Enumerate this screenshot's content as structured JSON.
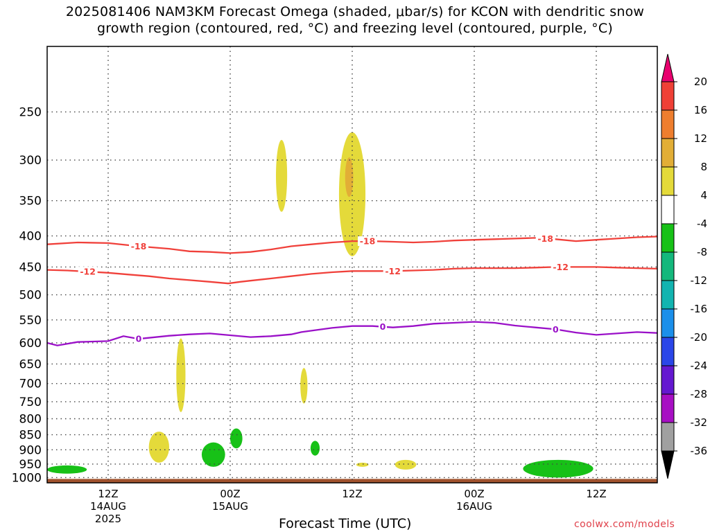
{
  "title": {
    "line1": "2025081406 NAM3KM Forecast Omega (shaded, μbar/s) for KCON with dendritic snow",
    "line2": "growth region (contoured, red, °C) and freezing level (contoured, purple, °C)"
  },
  "credit": "coolwx.com/models",
  "chart_data": {
    "type": "time-height cross section",
    "title": "2025081406 NAM3KM Forecast Omega (shaded, μbar/s) for KCON with dendritic snow growth region (contoured, red, °C) and freezing level (contoured, purple, °C)",
    "xlabel": "Forecast Time (UTC)",
    "ylabel": "",
    "x_unit": "hours since 2025-08-14 06Z",
    "xlim": [
      0,
      60
    ],
    "y_unit": "hPa",
    "yscale": "log",
    "ylim": [
      1020,
      195
    ],
    "grid": true,
    "x_ticks": [
      {
        "hour": 6,
        "lines": [
          "12Z",
          "14AUG",
          "2025"
        ]
      },
      {
        "hour": 18,
        "lines": [
          "00Z",
          "15AUG"
        ]
      },
      {
        "hour": 30,
        "lines": [
          "12Z",
          ""
        ]
      },
      {
        "hour": 42,
        "lines": [
          "00Z",
          "16AUG"
        ]
      },
      {
        "hour": 54,
        "lines": [
          "12Z",
          ""
        ]
      }
    ],
    "y_ticks": [
      250,
      300,
      350,
      400,
      450,
      500,
      550,
      600,
      650,
      700,
      750,
      800,
      850,
      900,
      950,
      1000
    ],
    "colorbar": {
      "levels": [
        20,
        16,
        12,
        8,
        4,
        -4,
        -8,
        -12,
        -16,
        -20,
        -24,
        -28,
        -32,
        -36
      ],
      "colors": [
        "#e8006e",
        "#ef4036",
        "#ee7e2e",
        "#e2ae36",
        "#e4da3a",
        "#ffffff",
        "#17c117",
        "#14b87c",
        "#12b4b0",
        "#1b8fea",
        "#2a46e8",
        "#6418d0",
        "#a70fc3",
        "#a0a0a0",
        "#000000"
      ]
    },
    "contours": [
      {
        "label": "-18",
        "color": "#f0403a",
        "label_hours": [
          9,
          31.5,
          49
        ],
        "points": [
          [
            0,
            413
          ],
          [
            3,
            410
          ],
          [
            6,
            411
          ],
          [
            9,
            416
          ],
          [
            12,
            420
          ],
          [
            14,
            424
          ],
          [
            16,
            425
          ],
          [
            18,
            427
          ],
          [
            20,
            425
          ],
          [
            22,
            421
          ],
          [
            24,
            416
          ],
          [
            26,
            413
          ],
          [
            28,
            410
          ],
          [
            30,
            408
          ],
          [
            32,
            408
          ],
          [
            34,
            409
          ],
          [
            36,
            410
          ],
          [
            38,
            409
          ],
          [
            40,
            407
          ],
          [
            42,
            406
          ],
          [
            44,
            405
          ],
          [
            46,
            404
          ],
          [
            48,
            403
          ],
          [
            50,
            405
          ],
          [
            52,
            408
          ],
          [
            54,
            406
          ],
          [
            56,
            404
          ],
          [
            58,
            402
          ],
          [
            60,
            401
          ]
        ]
      },
      {
        "label": "-12",
        "color": "#f0403a",
        "label_hours": [
          4,
          34,
          50.5
        ],
        "points": [
          [
            0,
            455
          ],
          [
            2,
            456
          ],
          [
            4,
            458
          ],
          [
            6,
            460
          ],
          [
            8,
            463
          ],
          [
            10,
            466
          ],
          [
            12,
            470
          ],
          [
            14,
            473
          ],
          [
            16,
            476
          ],
          [
            17.8,
            479
          ],
          [
            19,
            476
          ],
          [
            20,
            474
          ],
          [
            22,
            470
          ],
          [
            24,
            466
          ],
          [
            26,
            462
          ],
          [
            28,
            459
          ],
          [
            30,
            457
          ],
          [
            32,
            457
          ],
          [
            34,
            457
          ],
          [
            36,
            456
          ],
          [
            38,
            455
          ],
          [
            40,
            453
          ],
          [
            42,
            452
          ],
          [
            44,
            452
          ],
          [
            46,
            452
          ],
          [
            48,
            451
          ],
          [
            50,
            450
          ],
          [
            52,
            450
          ],
          [
            54,
            450
          ],
          [
            56,
            451
          ],
          [
            58,
            452
          ],
          [
            60,
            453
          ]
        ]
      },
      {
        "label": "0",
        "color": "#9a10c8",
        "label_hours": [
          9,
          33,
          50
        ],
        "points": [
          [
            0,
            600
          ],
          [
            1,
            606
          ],
          [
            3,
            598
          ],
          [
            6,
            596
          ],
          [
            7.5,
            585
          ],
          [
            9,
            591
          ],
          [
            12,
            584
          ],
          [
            14,
            581
          ],
          [
            16,
            579
          ],
          [
            18,
            583
          ],
          [
            20,
            587
          ],
          [
            22,
            585
          ],
          [
            24,
            581
          ],
          [
            25,
            576
          ],
          [
            26,
            573
          ],
          [
            28,
            567
          ],
          [
            30,
            563
          ],
          [
            32,
            563
          ],
          [
            34,
            566
          ],
          [
            36,
            563
          ],
          [
            38,
            558
          ],
          [
            40,
            556
          ],
          [
            42,
            554
          ],
          [
            44,
            556
          ],
          [
            46,
            562
          ],
          [
            48,
            566
          ],
          [
            50,
            570
          ],
          [
            52,
            577
          ],
          [
            54,
            582
          ],
          [
            56,
            579
          ],
          [
            58,
            576
          ],
          [
            60,
            578
          ]
        ]
      }
    ],
    "shaded_regions": [
      {
        "level": "4 to 8",
        "color": "#e4da3a",
        "hour_range": [
          22.5,
          23.6
        ],
        "pressure_range": [
          365,
          278
        ]
      },
      {
        "level": "4 to 8",
        "color": "#e4da3a",
        "hour_range": [
          28.7,
          31.3
        ],
        "pressure_range": [
          432,
          270
        ]
      },
      {
        "level": "8 to 12",
        "color": "#e2ae36",
        "hour_range": [
          29.3,
          30.1
        ],
        "pressure_range": [
          345,
          297
        ]
      },
      {
        "level": "4 to 8",
        "color": "#e4da3a",
        "hour_range": [
          12.7,
          13.6
        ],
        "pressure_range": [
          780,
          590
        ]
      },
      {
        "level": "4 to 8",
        "color": "#e4da3a",
        "hour_range": [
          24.9,
          25.6
        ],
        "pressure_range": [
          755,
          660
        ]
      },
      {
        "level": "4 to 8",
        "color": "#e4da3a",
        "hour_range": [
          10,
          12
        ],
        "pressure_range": [
          945,
          840
        ]
      },
      {
        "level": "4 to 8",
        "color": "#e4da3a",
        "hour_range": [
          30.4,
          31.6
        ],
        "pressure_range": [
          960,
          945
        ]
      },
      {
        "level": "4 to 8",
        "color": "#e4da3a",
        "hour_range": [
          34.2,
          36.3
        ],
        "pressure_range": [
          970,
          935
        ]
      },
      {
        "level": "-8 to -4",
        "color": "#17c117",
        "hour_range": [
          0,
          3.9
        ],
        "pressure_range": [
          985,
          955
        ]
      },
      {
        "level": "-8 to -4",
        "color": "#17c117",
        "hour_range": [
          15.2,
          17.5
        ],
        "pressure_range": [
          960,
          875
        ]
      },
      {
        "level": "-8 to -4",
        "color": "#17c117",
        "hour_range": [
          18,
          19.2
        ],
        "pressure_range": [
          895,
          830
        ]
      },
      {
        "level": "-8 to -4",
        "color": "#17c117",
        "hour_range": [
          25.9,
          26.8
        ],
        "pressure_range": [
          920,
          870
        ]
      },
      {
        "level": "-8 to -4",
        "color": "#17c117",
        "hour_range": [
          46.8,
          53.7
        ],
        "pressure_range": [
          1000,
          935
        ]
      }
    ],
    "terrain": {
      "color": "#a0522d",
      "surface_hPa": 1005
    }
  }
}
